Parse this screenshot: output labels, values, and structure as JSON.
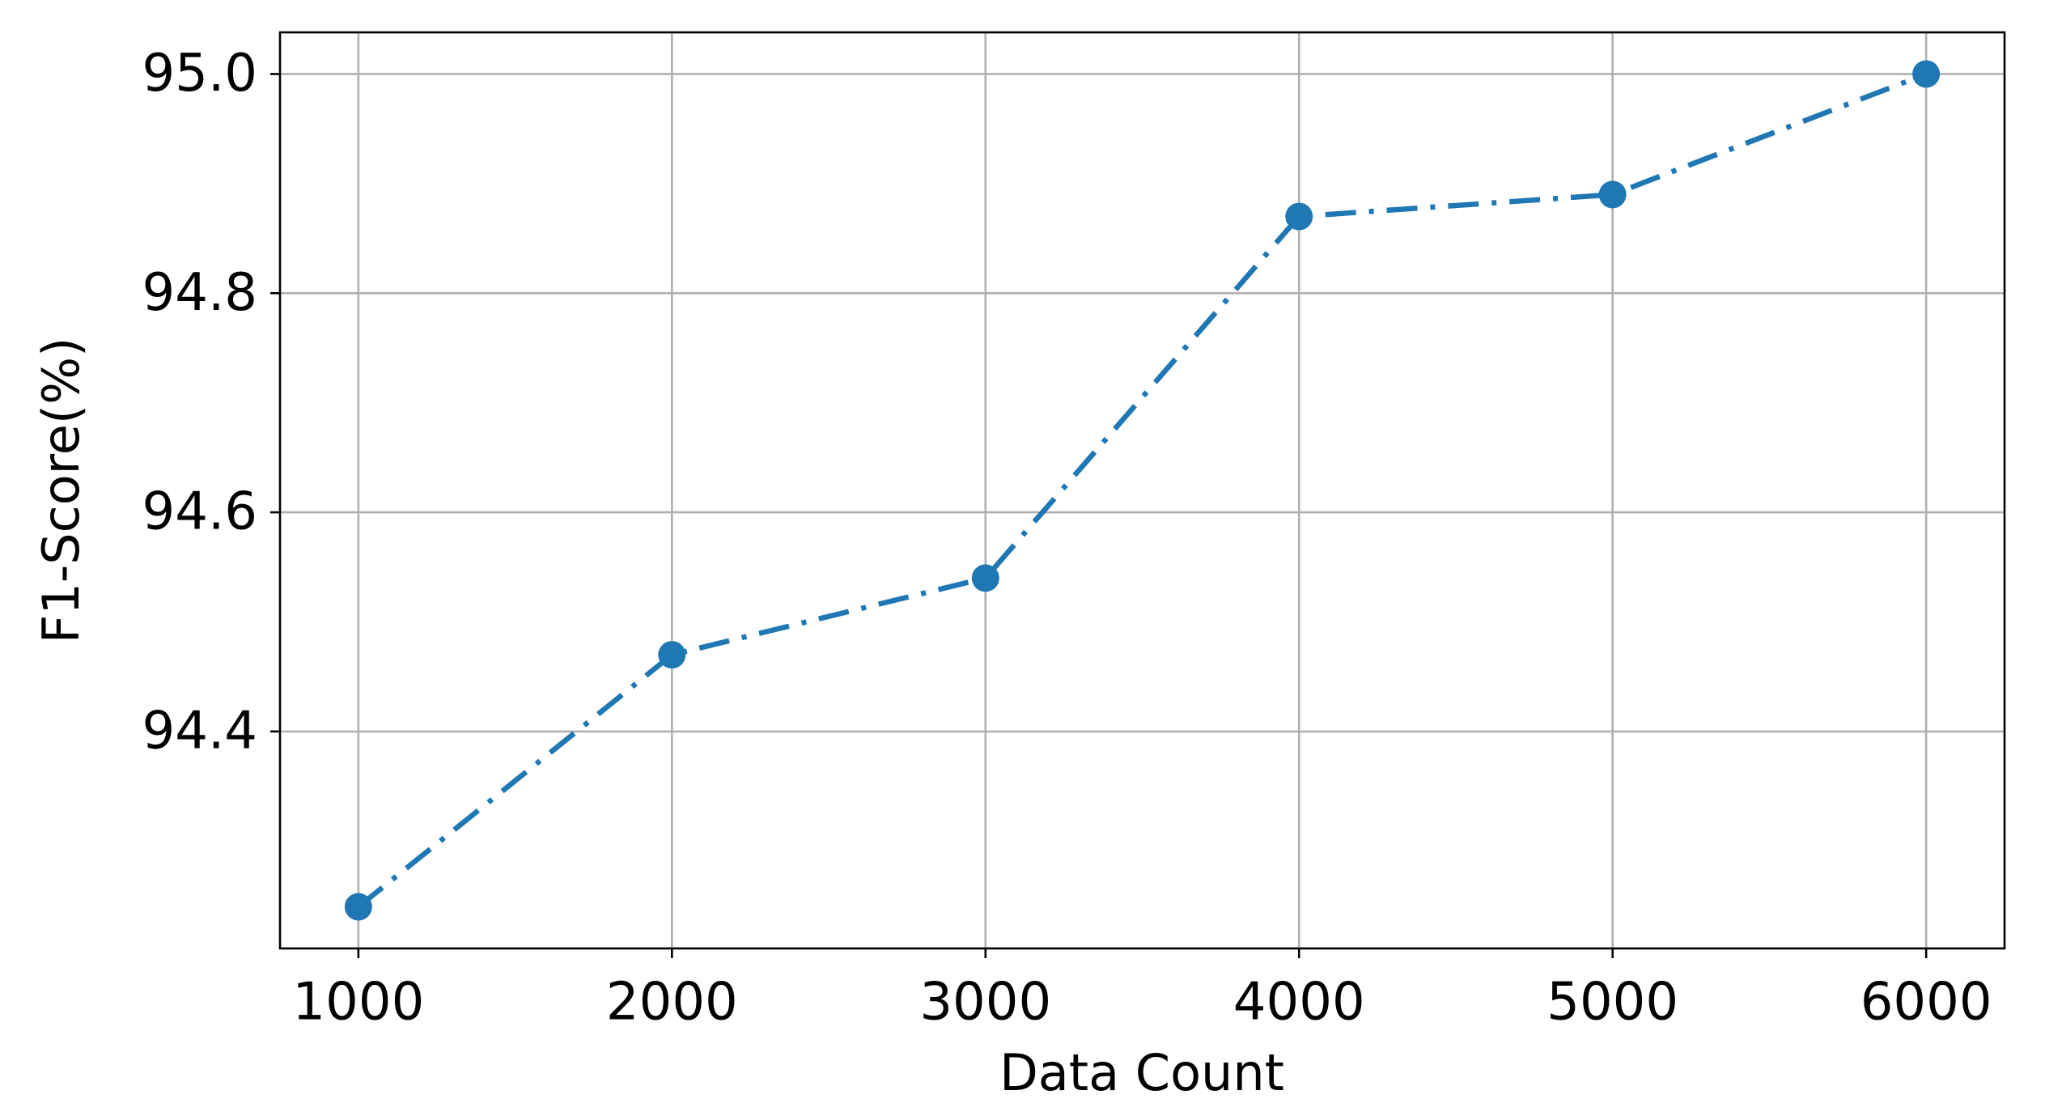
{
  "chart_data": {
    "type": "line",
    "x_label": "Data Count",
    "y_label": "F1-Score(%)",
    "x": [
      1000,
      2000,
      3000,
      4000,
      5000,
      6000
    ],
    "values": [
      94.24,
      94.47,
      94.54,
      94.87,
      94.89,
      95.0
    ],
    "color": "#1f77b4",
    "xlim": [
      750,
      6250
    ],
    "xticks": [
      1000,
      2000,
      3000,
      4000,
      5000,
      6000
    ],
    "ylim": [
      94.202,
      95.038
    ],
    "yticks": [
      94.4,
      94.6,
      94.8,
      {
        "value": 95,
        "label": "95.0"
      }
    ],
    "grid": true,
    "line_style": "dashdot",
    "marker": "circle"
  }
}
